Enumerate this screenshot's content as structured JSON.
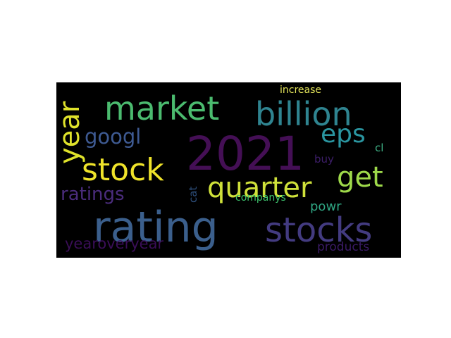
{
  "word_cloud": {
    "background_color": "#000000",
    "words": [
      {
        "text": "2021",
        "color": "#440f55"
      },
      {
        "text": "rating",
        "color": "#3b5f8c"
      },
      {
        "text": "stocks",
        "color": "#433b80"
      },
      {
        "text": "market",
        "color": "#4bbb6f"
      },
      {
        "text": "billion",
        "color": "#2f8490"
      },
      {
        "text": "stock",
        "color": "#efe32a"
      },
      {
        "text": "quarter",
        "color": "#cfe13a"
      },
      {
        "text": "get",
        "color": "#9ed94a"
      },
      {
        "text": "year",
        "color": "#dfe22b"
      },
      {
        "text": "eps",
        "color": "#2a95a0"
      },
      {
        "text": "googl",
        "color": "#3e5a92"
      },
      {
        "text": "ratings",
        "color": "#4a2c7c"
      },
      {
        "text": "yearoveryear",
        "color": "#3a0e57"
      },
      {
        "text": "products",
        "color": "#3a1a66"
      },
      {
        "text": "increase",
        "color": "#e3e45a"
      },
      {
        "text": "companys",
        "color": "#3fc56e"
      },
      {
        "text": "powr",
        "color": "#2fa683"
      },
      {
        "text": "buy",
        "color": "#3d1e6a"
      },
      {
        "text": "cl",
        "color": "#3fb287"
      },
      {
        "text": "cat",
        "color": "#2d4e7a"
      }
    ]
  }
}
